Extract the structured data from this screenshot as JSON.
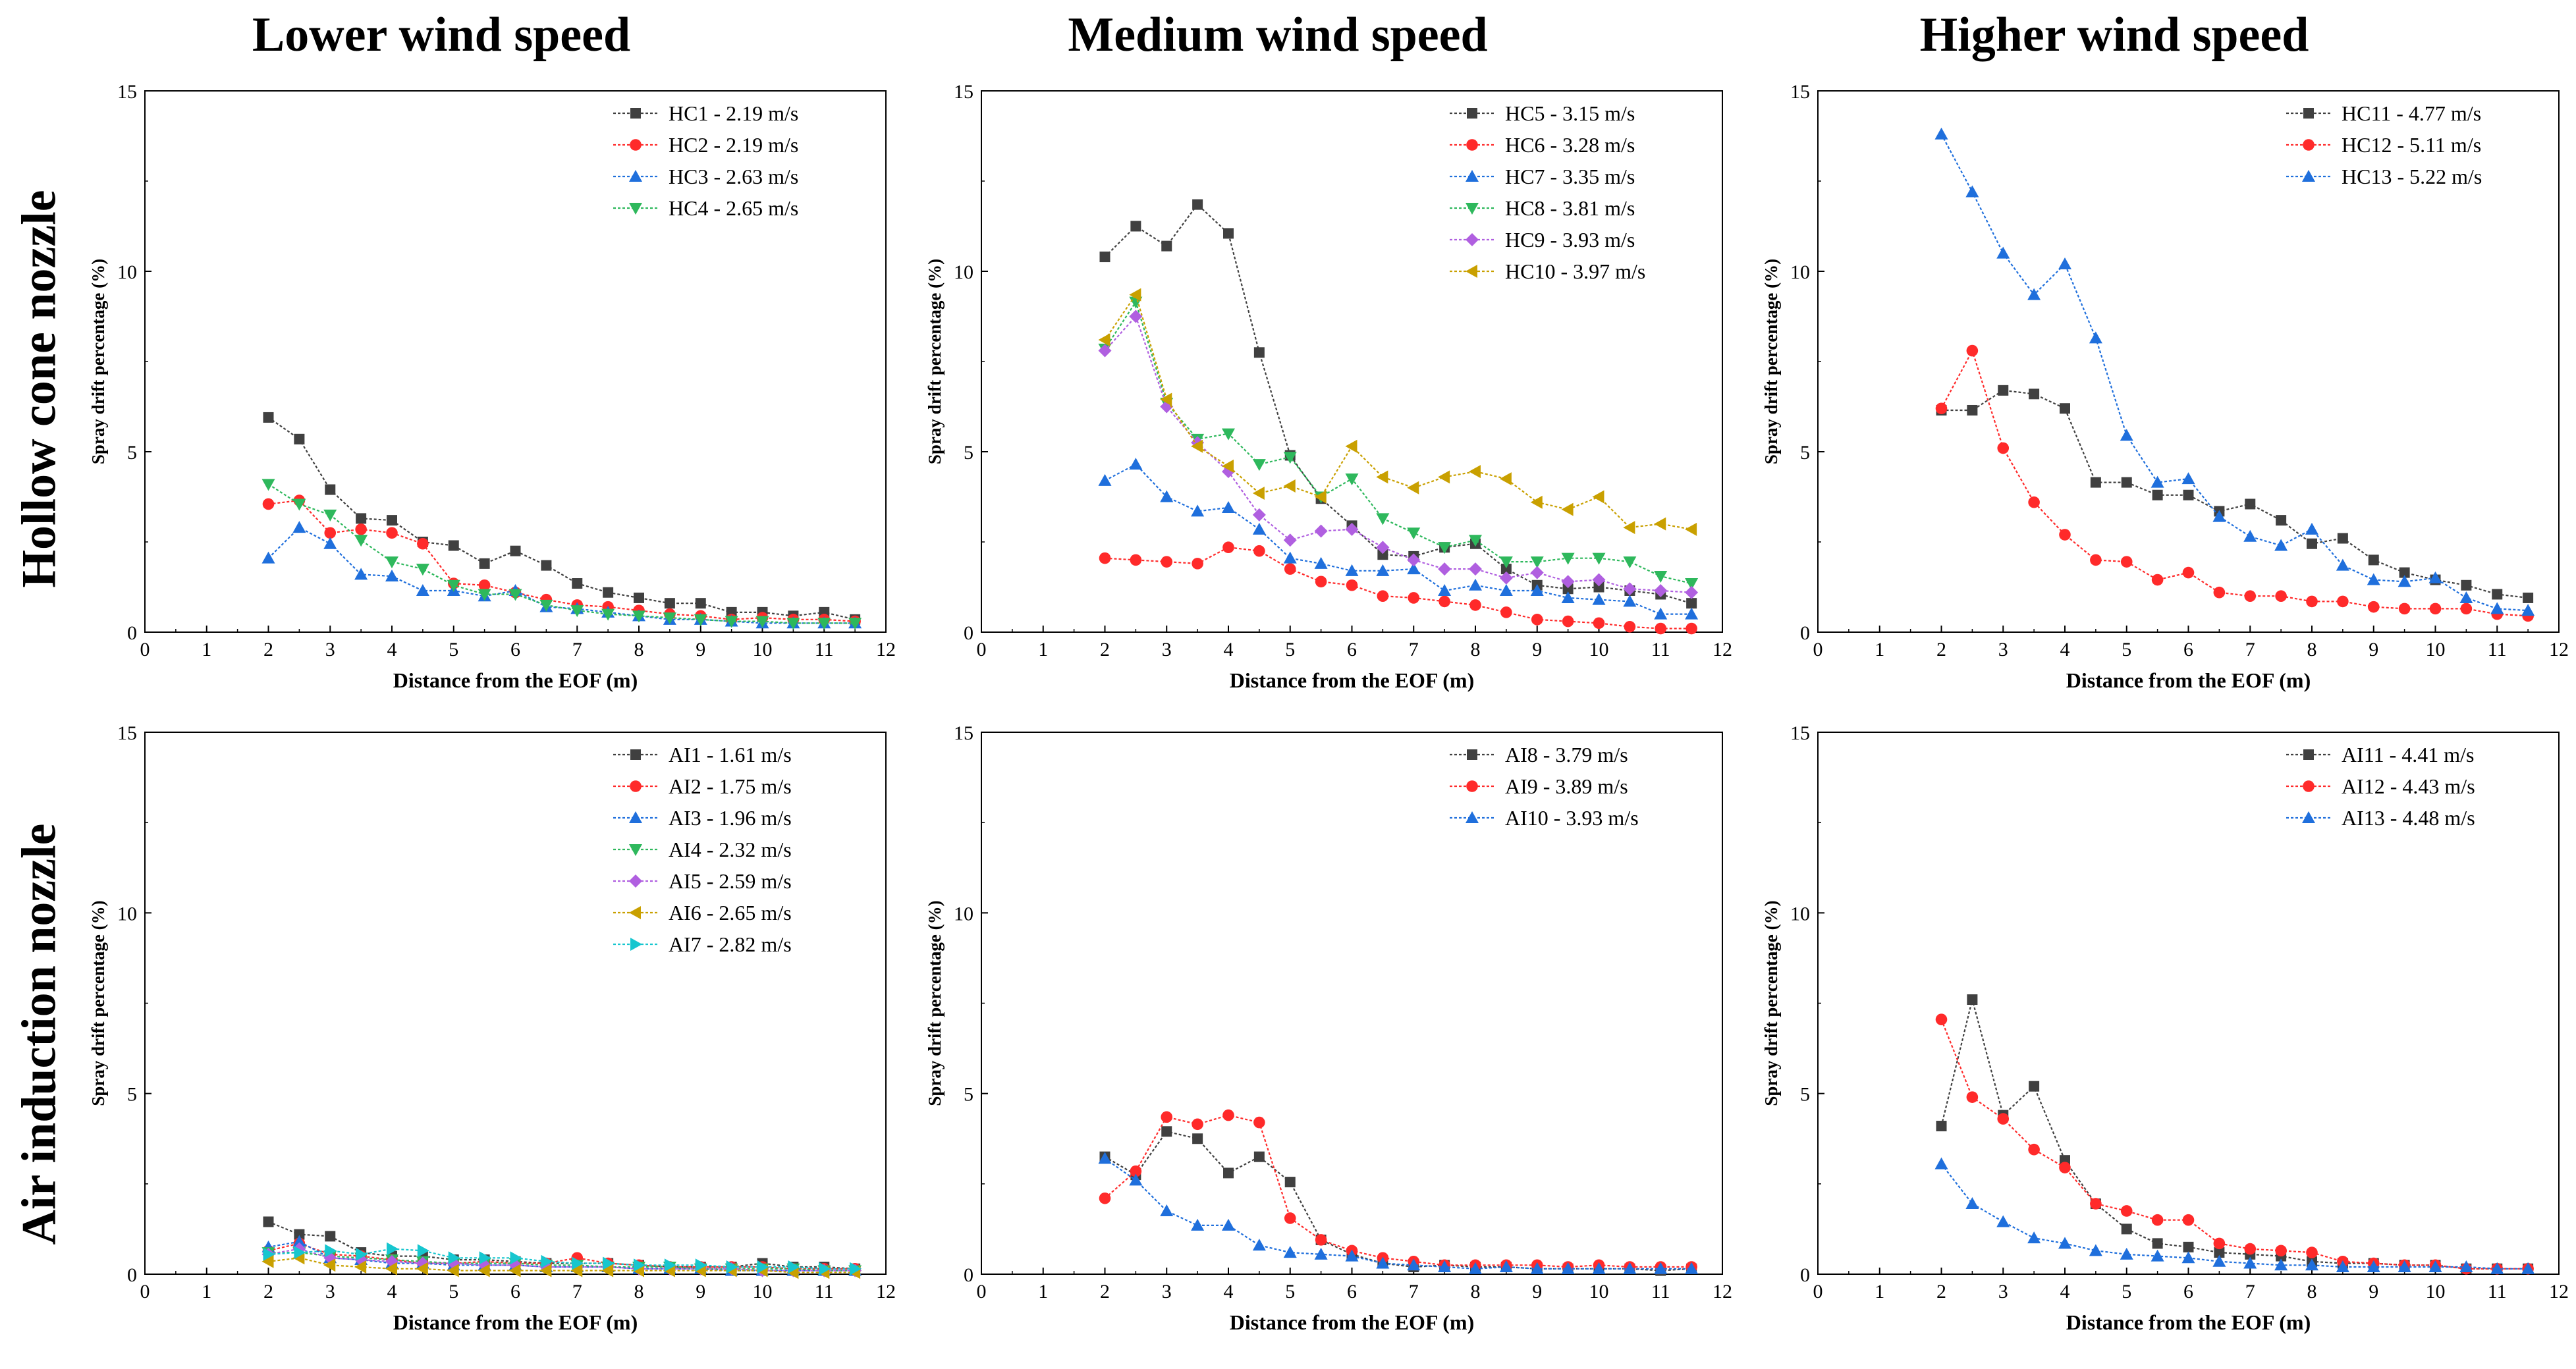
{
  "column_titles": [
    "Lower wind speed",
    "Medium wind speed",
    "Higher wind speed"
  ],
  "row_titles": [
    "Hollow cone nozzle",
    "Air induction nozzle"
  ],
  "chart_data": [
    {
      "id": "hc-lower",
      "type": "line",
      "xlabel": "Distance from the EOF (m)",
      "ylabel": "Spray drift percentage (%)",
      "xlim": [
        0,
        12
      ],
      "ylim": [
        0,
        15
      ],
      "xticks": [
        0,
        1,
        2,
        3,
        4,
        5,
        6,
        7,
        8,
        9,
        10,
        11,
        12
      ],
      "yticks": [
        0,
        5,
        10,
        15
      ],
      "legend_position": "top-right",
      "x": [
        2,
        2.5,
        3,
        3.5,
        4,
        4.5,
        5,
        5.5,
        6,
        6.5,
        7,
        7.5,
        8,
        8.5,
        9,
        9.5,
        10,
        10.5,
        11,
        11.5
      ],
      "series": [
        {
          "name": "HC1 - 2.19 m/s",
          "color": "#404040",
          "marker": "square",
          "values": [
            5.95,
            5.35,
            3.95,
            3.15,
            3.1,
            2.5,
            2.4,
            1.9,
            2.25,
            1.85,
            1.35,
            1.1,
            0.95,
            0.8,
            0.8,
            0.55,
            0.55,
            0.45,
            0.55,
            0.35
          ]
        },
        {
          "name": "HC2 - 2.19 m/s",
          "color": "#ff2a2a",
          "marker": "circle",
          "values": [
            3.55,
            3.65,
            2.75,
            2.85,
            2.75,
            2.45,
            1.35,
            1.3,
            1.1,
            0.9,
            0.75,
            0.7,
            0.6,
            0.5,
            0.45,
            0.35,
            0.4,
            0.35,
            0.35,
            0.3
          ]
        },
        {
          "name": "HC3 - 2.63 m/s",
          "color": "#1f6fdc",
          "marker": "triangle-up",
          "values": [
            2.05,
            2.9,
            2.45,
            1.6,
            1.55,
            1.15,
            1.15,
            1.0,
            1.15,
            0.7,
            0.65,
            0.55,
            0.45,
            0.35,
            0.35,
            0.3,
            0.25,
            0.25,
            0.25,
            0.25
          ]
        },
        {
          "name": "HC4 - 2.65 m/s",
          "color": "#2eb85c",
          "marker": "triangle-down",
          "values": [
            4.1,
            3.55,
            3.25,
            2.55,
            1.95,
            1.75,
            1.3,
            1.05,
            1.05,
            0.75,
            0.6,
            0.5,
            0.45,
            0.4,
            0.35,
            0.3,
            0.3,
            0.25,
            0.25,
            0.25
          ]
        }
      ]
    },
    {
      "id": "hc-medium",
      "type": "line",
      "xlabel": "Distance from the EOF (m)",
      "ylabel": "Spray drift percentage (%)",
      "xlim": [
        0,
        12
      ],
      "ylim": [
        0,
        15
      ],
      "xticks": [
        0,
        1,
        2,
        3,
        4,
        5,
        6,
        7,
        8,
        9,
        10,
        11,
        12
      ],
      "yticks": [
        0,
        5,
        10,
        15
      ],
      "legend_position": "top-right",
      "x": [
        2,
        2.5,
        3,
        3.5,
        4,
        4.5,
        5,
        5.5,
        6,
        6.5,
        7,
        7.5,
        8,
        8.5,
        9,
        9.5,
        10,
        10.5,
        11,
        11.5
      ],
      "series": [
        {
          "name": "HC5 - 3.15 m/s",
          "color": "#404040",
          "marker": "square",
          "values": [
            10.4,
            11.25,
            10.7,
            11.85,
            11.05,
            7.75,
            4.9,
            3.7,
            2.95,
            2.15,
            2.1,
            2.35,
            2.45,
            1.75,
            1.3,
            1.2,
            1.25,
            1.15,
            1.05,
            0.8
          ]
        },
        {
          "name": "HC6 - 3.28 m/s",
          "color": "#ff2a2a",
          "marker": "circle",
          "values": [
            2.05,
            2.0,
            1.95,
            1.9,
            2.35,
            2.25,
            1.75,
            1.4,
            1.3,
            1.0,
            0.95,
            0.85,
            0.75,
            0.55,
            0.35,
            0.3,
            0.25,
            0.15,
            0.1,
            0.1
          ]
        },
        {
          "name": "HC7 - 3.35 m/s",
          "color": "#1f6fdc",
          "marker": "triangle-up",
          "values": [
            4.2,
            4.65,
            3.75,
            3.35,
            3.45,
            2.85,
            2.05,
            1.9,
            1.7,
            1.7,
            1.75,
            1.15,
            1.3,
            1.15,
            1.15,
            0.95,
            0.9,
            0.85,
            0.5,
            0.5
          ]
        },
        {
          "name": "HC8 - 3.81 m/s",
          "color": "#2eb85c",
          "marker": "triangle-down",
          "values": [
            7.85,
            9.15,
            6.35,
            5.35,
            5.5,
            4.65,
            4.85,
            3.75,
            4.25,
            3.15,
            2.75,
            2.35,
            2.55,
            1.95,
            1.95,
            2.05,
            2.05,
            1.95,
            1.55,
            1.35
          ]
        },
        {
          "name": "HC9 - 3.93 m/s",
          "color": "#b05fe0",
          "marker": "diamond",
          "values": [
            7.8,
            8.75,
            6.25,
            5.25,
            4.45,
            3.25,
            2.55,
            2.8,
            2.85,
            2.35,
            2.0,
            1.75,
            1.75,
            1.5,
            1.65,
            1.4,
            1.45,
            1.2,
            1.15,
            1.1
          ]
        },
        {
          "name": "HC10 - 3.97 m/s",
          "color": "#c9a000",
          "marker": "triangle-left",
          "values": [
            8.1,
            9.35,
            6.45,
            5.15,
            4.6,
            3.85,
            4.05,
            3.75,
            5.15,
            4.3,
            4.0,
            4.3,
            4.45,
            4.25,
            3.6,
            3.4,
            3.75,
            2.9,
            3.0,
            2.85
          ]
        }
      ]
    },
    {
      "id": "hc-higher",
      "type": "line",
      "xlabel": "Distance from the EOF (m)",
      "ylabel": "Spray drift percentage (%)",
      "xlim": [
        0,
        12
      ],
      "ylim": [
        0,
        15
      ],
      "xticks": [
        0,
        1,
        2,
        3,
        4,
        5,
        6,
        7,
        8,
        9,
        10,
        11,
        12
      ],
      "yticks": [
        0,
        5,
        10,
        15
      ],
      "legend_position": "top-right",
      "x": [
        2,
        2.5,
        3,
        3.5,
        4,
        4.5,
        5,
        5.5,
        6,
        6.5,
        7,
        7.5,
        8,
        8.5,
        9,
        9.5,
        10,
        10.5,
        11,
        11.5
      ],
      "series": [
        {
          "name": "HC11 - 4.77 m/s",
          "color": "#404040",
          "marker": "square",
          "values": [
            6.15,
            6.15,
            6.7,
            6.6,
            6.2,
            4.15,
            4.15,
            3.8,
            3.8,
            3.35,
            3.55,
            3.1,
            2.45,
            2.6,
            2.0,
            1.65,
            1.45,
            1.3,
            1.05,
            0.95
          ]
        },
        {
          "name": "HC12 - 5.11 m/s",
          "color": "#ff2a2a",
          "marker": "circle",
          "values": [
            6.2,
            7.8,
            5.1,
            3.6,
            2.7,
            2.0,
            1.95,
            1.45,
            1.65,
            1.1,
            1.0,
            1.0,
            0.85,
            0.85,
            0.7,
            0.65,
            0.65,
            0.65,
            0.5,
            0.45
          ]
        },
        {
          "name": "HC13 - 5.22 m/s",
          "color": "#1f6fdc",
          "marker": "triangle-up",
          "values": [
            13.8,
            12.2,
            10.5,
            9.35,
            10.2,
            8.15,
            5.45,
            4.15,
            4.25,
            3.2,
            2.65,
            2.4,
            2.85,
            1.85,
            1.45,
            1.4,
            1.5,
            0.95,
            0.65,
            0.6
          ]
        }
      ]
    },
    {
      "id": "ai-lower",
      "type": "line",
      "xlabel": "Distance from the EOF (m)",
      "ylabel": "Spray drift percentage (%)",
      "xlim": [
        0,
        12
      ],
      "ylim": [
        0,
        15
      ],
      "xticks": [
        0,
        1,
        2,
        3,
        4,
        5,
        6,
        7,
        8,
        9,
        10,
        11,
        12
      ],
      "yticks": [
        0,
        5,
        10,
        15
      ],
      "legend_position": "top-right",
      "x": [
        2,
        2.5,
        3,
        3.5,
        4,
        4.5,
        5,
        5.5,
        6,
        6.5,
        7,
        7.5,
        8,
        8.5,
        9,
        9.5,
        10,
        10.5,
        11,
        11.5
      ],
      "series": [
        {
          "name": "AI1 - 1.61 m/s",
          "color": "#404040",
          "marker": "square",
          "values": [
            1.45,
            1.1,
            1.05,
            0.6,
            0.5,
            0.5,
            0.4,
            0.4,
            0.35,
            0.3,
            0.3,
            0.3,
            0.25,
            0.2,
            0.2,
            0.2,
            0.3,
            0.2,
            0.2,
            0.15
          ]
        },
        {
          "name": "AI2 - 1.75 m/s",
          "color": "#ff2a2a",
          "marker": "circle",
          "values": [
            0.65,
            0.85,
            0.55,
            0.5,
            0.4,
            0.3,
            0.3,
            0.35,
            0.3,
            0.3,
            0.45,
            0.3,
            0.25,
            0.2,
            0.2,
            0.2,
            0.2,
            0.15,
            0.15,
            0.15
          ]
        },
        {
          "name": "AI3 - 1.96 m/s",
          "color": "#1f6fdc",
          "marker": "triangle-up",
          "values": [
            0.75,
            0.9,
            0.45,
            0.4,
            0.3,
            0.3,
            0.25,
            0.25,
            0.25,
            0.2,
            0.2,
            0.2,
            0.15,
            0.15,
            0.15,
            0.1,
            0.1,
            0.1,
            0.1,
            0.1
          ]
        },
        {
          "name": "AI4 - 2.32 m/s",
          "color": "#2eb85c",
          "marker": "triangle-down",
          "values": [
            0.6,
            0.6,
            0.5,
            0.45,
            0.4,
            0.35,
            0.3,
            0.3,
            0.3,
            0.25,
            0.25,
            0.2,
            0.2,
            0.2,
            0.15,
            0.15,
            0.15,
            0.15,
            0.1,
            0.1
          ]
        },
        {
          "name": "AI5 - 2.59 m/s",
          "color": "#b05fe0",
          "marker": "diamond",
          "values": [
            0.55,
            0.7,
            0.45,
            0.4,
            0.35,
            0.3,
            0.3,
            0.25,
            0.25,
            0.2,
            0.2,
            0.2,
            0.15,
            0.15,
            0.15,
            0.15,
            0.1,
            0.1,
            0.1,
            0.1
          ]
        },
        {
          "name": "AI6 - 2.65 m/s",
          "color": "#c9a000",
          "marker": "triangle-left",
          "values": [
            0.35,
            0.45,
            0.25,
            0.2,
            0.15,
            0.15,
            0.1,
            0.1,
            0.1,
            0.1,
            0.1,
            0.1,
            0.1,
            0.1,
            0.1,
            0.1,
            0.1,
            0.05,
            0.05,
            0.05
          ]
        },
        {
          "name": "AI7 - 2.82 m/s",
          "color": "#17c6cf",
          "marker": "triangle-right",
          "values": [
            0.55,
            0.6,
            0.65,
            0.55,
            0.7,
            0.65,
            0.45,
            0.45,
            0.45,
            0.35,
            0.3,
            0.3,
            0.25,
            0.25,
            0.25,
            0.2,
            0.2,
            0.2,
            0.15,
            0.15
          ]
        }
      ]
    },
    {
      "id": "ai-medium",
      "type": "line",
      "xlabel": "Distance from the EOF (m)",
      "ylabel": "Spray drift percentage (%)",
      "xlim": [
        0,
        12
      ],
      "ylim": [
        0,
        15
      ],
      "xticks": [
        0,
        1,
        2,
        3,
        4,
        5,
        6,
        7,
        8,
        9,
        10,
        11,
        12
      ],
      "yticks": [
        0,
        5,
        10,
        15
      ],
      "legend_position": "top-right",
      "x": [
        2,
        2.5,
        3,
        3.5,
        4,
        4.5,
        5,
        5.5,
        6,
        6.5,
        7,
        7.5,
        8,
        8.5,
        9,
        9.5,
        10,
        10.5,
        11,
        11.5
      ],
      "series": [
        {
          "name": "AI8 - 3.79 m/s",
          "color": "#404040",
          "marker": "square",
          "values": [
            3.25,
            2.75,
            3.95,
            3.75,
            2.8,
            3.25,
            2.55,
            0.95,
            0.55,
            0.3,
            0.2,
            0.25,
            0.2,
            0.2,
            0.15,
            0.15,
            0.15,
            0.15,
            0.1,
            0.15
          ]
        },
        {
          "name": "AI9 - 3.89 m/s",
          "color": "#ff2a2a",
          "marker": "circle",
          "values": [
            2.1,
            2.85,
            4.35,
            4.15,
            4.4,
            4.2,
            1.55,
            0.95,
            0.65,
            0.45,
            0.35,
            0.25,
            0.25,
            0.25,
            0.25,
            0.2,
            0.25,
            0.2,
            0.2,
            0.2
          ]
        },
        {
          "name": "AI10 - 3.93 m/s",
          "color": "#1f6fdc",
          "marker": "triangle-up",
          "values": [
            3.2,
            2.6,
            1.75,
            1.35,
            1.35,
            0.8,
            0.6,
            0.55,
            0.5,
            0.3,
            0.25,
            0.2,
            0.15,
            0.2,
            0.15,
            0.15,
            0.15,
            0.15,
            0.15,
            0.15
          ]
        }
      ]
    },
    {
      "id": "ai-higher",
      "type": "line",
      "xlabel": "Distance from the EOF (m)",
      "ylabel": "Spray drift percentage (%)",
      "xlim": [
        0,
        12
      ],
      "ylim": [
        0,
        15
      ],
      "xticks": [
        0,
        1,
        2,
        3,
        4,
        5,
        6,
        7,
        8,
        9,
        10,
        11,
        12
      ],
      "yticks": [
        0,
        5,
        10,
        15
      ],
      "legend_position": "top-right",
      "x": [
        2,
        2.5,
        3,
        3.5,
        4,
        4.5,
        5,
        5.5,
        6,
        6.5,
        7,
        7.5,
        8,
        8.5,
        9,
        9.5,
        10,
        10.5,
        11,
        11.5
      ],
      "series": [
        {
          "name": "AI11 - 4.41 m/s",
          "color": "#404040",
          "marker": "square",
          "values": [
            4.1,
            7.6,
            4.4,
            5.2,
            3.15,
            1.95,
            1.25,
            0.85,
            0.75,
            0.6,
            0.55,
            0.5,
            0.35,
            0.3,
            0.3,
            0.25,
            0.25,
            0.15,
            0.15,
            0.15
          ]
        },
        {
          "name": "AI12 - 4.43 m/s",
          "color": "#ff2a2a",
          "marker": "circle",
          "values": [
            7.05,
            4.9,
            4.3,
            3.45,
            2.95,
            1.95,
            1.75,
            1.5,
            1.5,
            0.85,
            0.7,
            0.65,
            0.6,
            0.35,
            0.3,
            0.25,
            0.25,
            0.15,
            0.15,
            0.15
          ]
        },
        {
          "name": "AI13 - 4.48 m/s",
          "color": "#1f6fdc",
          "marker": "triangle-up",
          "values": [
            3.05,
            1.95,
            1.45,
            1.0,
            0.85,
            0.65,
            0.55,
            0.5,
            0.45,
            0.35,
            0.3,
            0.25,
            0.25,
            0.2,
            0.2,
            0.2,
            0.2,
            0.2,
            0.15,
            0.15
          ]
        }
      ]
    }
  ]
}
